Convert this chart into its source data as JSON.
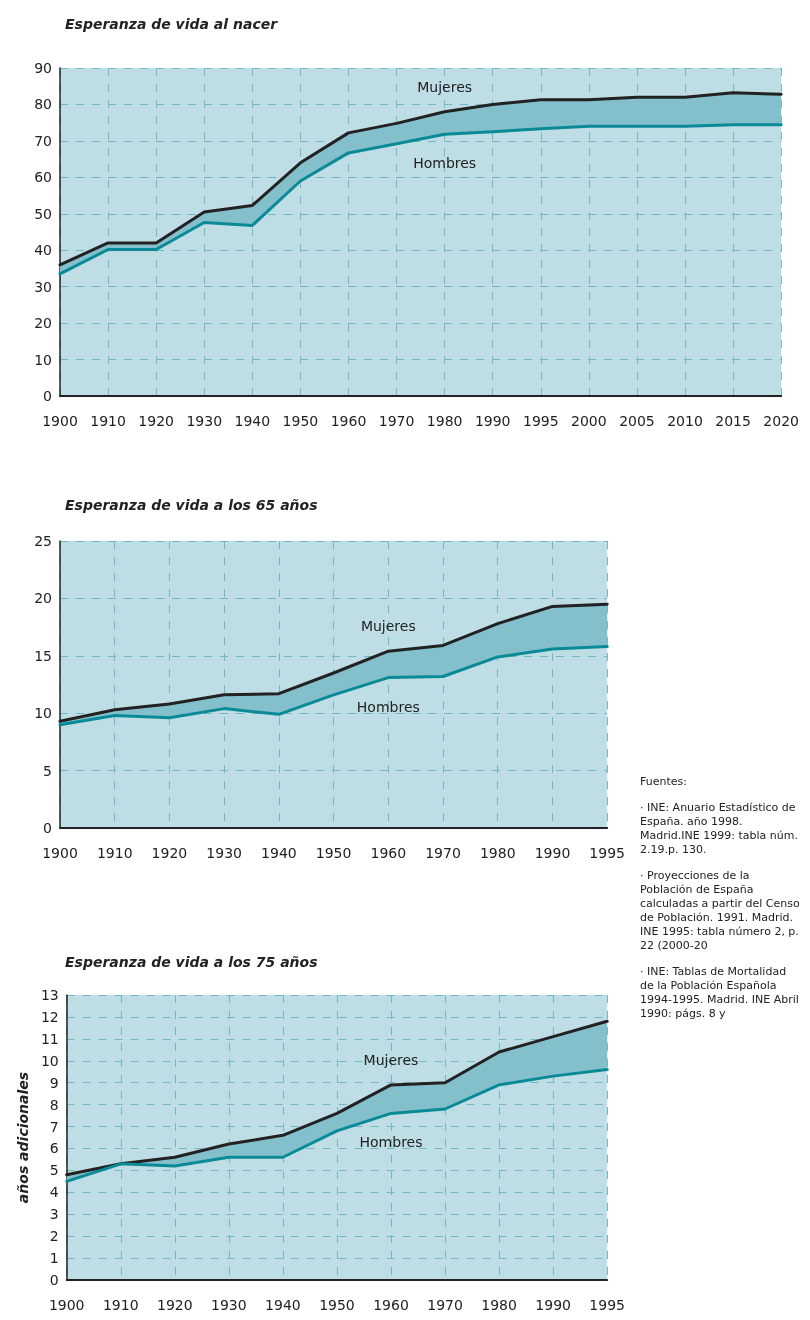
{
  "chart_data": [
    {
      "type": "line",
      "title": "Esperanza de vida al nacer",
      "categories": [
        "1900",
        "1910",
        "1920",
        "1930",
        "1940",
        "1950",
        "1960",
        "1970",
        "1980",
        "1990",
        "1995",
        "2000",
        "2005",
        "2010",
        "2015",
        "2020"
      ],
      "ylim": [
        0,
        90
      ],
      "yticks": [
        0,
        10,
        20,
        30,
        40,
        50,
        60,
        70,
        80,
        90
      ],
      "grid": true,
      "series": [
        {
          "name": "Mujeres",
          "color": "#222222",
          "values": [
            36,
            42,
            42,
            50.5,
            52.3,
            64,
            72.2,
            74.8,
            78,
            80,
            81.3,
            81.3,
            82,
            82,
            83.2,
            82.8
          ],
          "lower": [
            33.5,
            40.2,
            40.2,
            47.6,
            46.8,
            59,
            66.7,
            69.2,
            71.8,
            72.5,
            73.3,
            74,
            74,
            74,
            74.4,
            74.4
          ],
          "upper": [
            36,
            42,
            42,
            50.5,
            52.3,
            64,
            72.2,
            74.8,
            78,
            80,
            81.3,
            81.3,
            82,
            82,
            83.2,
            82.8
          ]
        },
        {
          "name": "Hombres",
          "color": "#0a8a96",
          "values": [
            33.5,
            40.2,
            40.2,
            47.6,
            46.8,
            59,
            66.7,
            69.2,
            71.8,
            72.5,
            73.3,
            74,
            74,
            74,
            74.4,
            74.4
          ]
        }
      ]
    },
    {
      "type": "line",
      "title": "Esperanza de vida a los 65 años",
      "categories": [
        "1900",
        "1910",
        "1920",
        "1930",
        "1940",
        "1950",
        "1960",
        "1970",
        "1980",
        "1990",
        "1995"
      ],
      "ylim": [
        0,
        25
      ],
      "yticks": [
        0,
        5,
        10,
        15,
        20,
        25
      ],
      "grid": true,
      "series": [
        {
          "name": "Mujeres",
          "color": "#222222",
          "values": [
            9.3,
            10.3,
            10.8,
            11.6,
            11.7,
            13.5,
            15.4,
            15.9,
            17.8,
            19.3,
            19.5
          ],
          "lower": [
            9.0,
            9.8,
            9.6,
            10.4,
            9.9,
            11.6,
            13.1,
            13.2,
            14.9,
            15.6,
            15.8
          ],
          "upper": [
            9.3,
            10.3,
            10.8,
            11.6,
            11.7,
            13.5,
            15.4,
            15.9,
            17.8,
            19.3,
            19.5
          ]
        },
        {
          "name": "Hombres",
          "color": "#0a8a96",
          "values": [
            9.0,
            9.8,
            9.6,
            10.4,
            9.9,
            11.6,
            13.1,
            13.2,
            14.9,
            15.6,
            15.8
          ]
        }
      ]
    },
    {
      "type": "line",
      "title": "Esperanza de vida a los 75 años",
      "ylabel": "años adicionales",
      "categories": [
        "1900",
        "1910",
        "1920",
        "1930",
        "1940",
        "1950",
        "1960",
        "1970",
        "1980",
        "1990",
        "1995"
      ],
      "ylim": [
        0,
        13
      ],
      "yticks": [
        0,
        1,
        2,
        3,
        4,
        5,
        6,
        7,
        8,
        9,
        10,
        11,
        12,
        13
      ],
      "grid": true,
      "series": [
        {
          "name": "Mujeres",
          "color": "#222222",
          "values": [
            4.8,
            5.3,
            5.6,
            6.2,
            6.6,
            7.6,
            8.9,
            9.0,
            10.4,
            11.1,
            11.8
          ],
          "lower": [
            4.5,
            5.3,
            5.2,
            5.6,
            5.6,
            6.8,
            7.6,
            7.8,
            8.9,
            9.3,
            9.6
          ],
          "upper": [
            4.8,
            5.3,
            5.6,
            6.2,
            6.6,
            7.6,
            8.9,
            9.0,
            10.4,
            11.1,
            11.8
          ]
        },
        {
          "name": "Hombres",
          "color": "#0a8a96",
          "values": [
            4.5,
            5.3,
            5.2,
            5.6,
            5.6,
            6.8,
            7.6,
            7.8,
            8.9,
            9.3,
            9.6
          ]
        }
      ],
      "annotations": [
        "Fuentes:",
        "· INE: Anuario Estadístico de España. año 1998. Madrid.INE 1999: tabla núm. 2.19.p. 130.",
        "· Proyecciones de la Población de España calculadas a partir del Censo de Población. 1991. Madrid. INE 1995: tabla número 2, p. 22 (2000-20",
        "· INE: Tablas de Mortalidad de la Población Española 1994-1995. Madrid. INE Abril 1990: págs. 8 y"
      ]
    }
  ]
}
